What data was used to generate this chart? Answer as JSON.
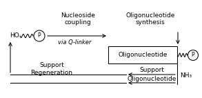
{
  "nucleoside_label": "Nucleoside\ncoupling",
  "via_label": "via Q-linker",
  "oligo_synth_label": "Oligonucleotide\nsynthesis",
  "support_regen_label": "Support\nRegeneration",
  "support_label": "Support",
  "oligonucleotide_label": "Oligonucleotide",
  "nh3_label": "NH₃",
  "ho_label": "HO",
  "p_label": "P",
  "font_size": 6.5,
  "italic_font_size": 6.0,
  "box_label": "Oligonucleotide",
  "lw": 0.75
}
